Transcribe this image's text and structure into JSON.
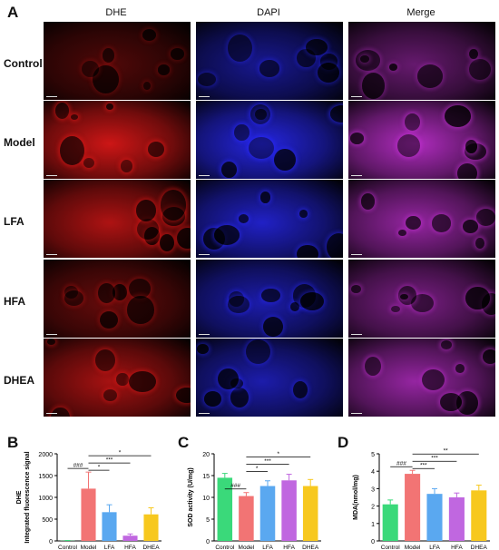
{
  "panel_a": {
    "letter": "A",
    "columns": [
      "DHE",
      "DAPI",
      "Merge"
    ],
    "rows": [
      "Control",
      "Model",
      "LFA",
      "HFA",
      "DHEA"
    ],
    "channel_colors": {
      "DHE": "#e01818",
      "DAPI": "#2a2aff",
      "Merge": "#c030d0"
    },
    "intensity": {
      "Control": [
        0.15,
        0.45,
        0.4
      ],
      "Model": [
        0.95,
        0.9,
        0.95
      ],
      "LFA": [
        0.75,
        0.75,
        0.75
      ],
      "HFA": [
        0.3,
        0.6,
        0.55
      ],
      "DHEA": [
        0.7,
        0.6,
        0.75
      ]
    }
  },
  "chart_data": [
    {
      "letter": "B",
      "type": "bar",
      "categories": [
        "Control",
        "Model",
        "LFA",
        "HFA",
        "DHEA"
      ],
      "values": [
        5,
        1200,
        660,
        120,
        610
      ],
      "errors": [
        5,
        380,
        170,
        40,
        150
      ],
      "colors": [
        "#3ad97a",
        "#f27474",
        "#5aa8f0",
        "#c067e0",
        "#f7c81e"
      ],
      "ylabel_line1": "DHE",
      "ylabel_line2": "Integrated fluorescence signal",
      "ylim": [
        0,
        2000
      ],
      "yticks": [
        "0",
        "500",
        "1000",
        "1500",
        "2000"
      ],
      "brackets": [
        {
          "from": 0,
          "to": 1,
          "label": "###"
        },
        {
          "from": 1,
          "to": 2,
          "label": "*"
        },
        {
          "from": 1,
          "to": 3,
          "label": "***"
        },
        {
          "from": 1,
          "to": 4,
          "label": "*"
        }
      ]
    },
    {
      "letter": "C",
      "type": "bar",
      "categories": [
        "Control",
        "Model",
        "LFA",
        "HFA",
        "DHEA"
      ],
      "values": [
        14.5,
        10.3,
        12.6,
        13.9,
        12.6
      ],
      "errors": [
        1.0,
        0.8,
        1.2,
        1.4,
        1.5
      ],
      "colors": [
        "#3ad97a",
        "#f27474",
        "#5aa8f0",
        "#c067e0",
        "#f7c81e"
      ],
      "ylabel_line1": "SOD activity (U/mg)",
      "ylabel_line2": "",
      "ylim": [
        0,
        20
      ],
      "yticks": [
        "0",
        "5",
        "10",
        "15",
        "20"
      ],
      "brackets": [
        {
          "from": 0,
          "to": 1,
          "label": "###"
        },
        {
          "from": 1,
          "to": 2,
          "label": "*"
        },
        {
          "from": 1,
          "to": 3,
          "label": "***"
        },
        {
          "from": 1,
          "to": 4,
          "label": "*"
        }
      ]
    },
    {
      "letter": "D",
      "type": "bar",
      "categories": [
        "Control",
        "Model",
        "LFA",
        "HFA",
        "DHEA"
      ],
      "values": [
        2.1,
        3.85,
        2.7,
        2.5,
        2.9
      ],
      "errors": [
        0.25,
        0.2,
        0.3,
        0.25,
        0.3
      ],
      "colors": [
        "#3ad97a",
        "#f27474",
        "#5aa8f0",
        "#c067e0",
        "#f7c81e"
      ],
      "ylabel_line1": "MDA(nmol/mg)",
      "ylabel_line2": "",
      "ylim": [
        0,
        5
      ],
      "yticks": [
        "0",
        "1",
        "2",
        "3",
        "4",
        "5"
      ],
      "brackets": [
        {
          "from": 0,
          "to": 1,
          "label": "###"
        },
        {
          "from": 1,
          "to": 2,
          "label": "***"
        },
        {
          "from": 1,
          "to": 3,
          "label": "***"
        },
        {
          "from": 1,
          "to": 4,
          "label": "**"
        }
      ]
    }
  ]
}
